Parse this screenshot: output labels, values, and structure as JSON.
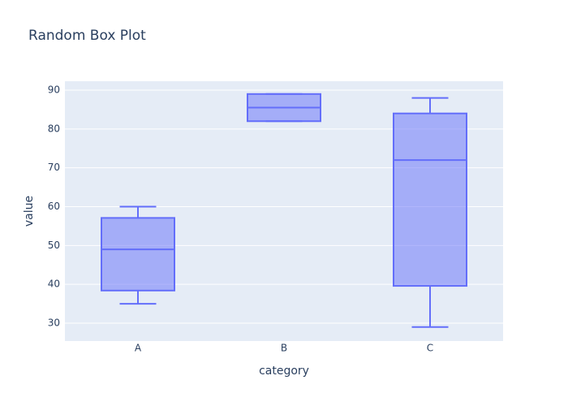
{
  "chart_data": {
    "type": "box",
    "title": "Random Box Plot",
    "xlabel": "category",
    "ylabel": "value",
    "categories": [
      "A",
      "B",
      "C"
    ],
    "min": [
      35,
      82,
      29
    ],
    "q1": [
      38.4,
      82,
      39.6
    ],
    "median": [
      49,
      85.5,
      72
    ],
    "q3": [
      57.1,
      89,
      84
    ],
    "max": [
      60,
      89,
      88
    ],
    "color": "#636efa",
    "fill_color": "rgba(99,110,250,0.5)",
    "background": "#e5ecf6",
    "ylim": [
      25.4,
      92.3
    ],
    "yticks": [
      30,
      40,
      50,
      60,
      70,
      80,
      90
    ],
    "grid": true
  }
}
